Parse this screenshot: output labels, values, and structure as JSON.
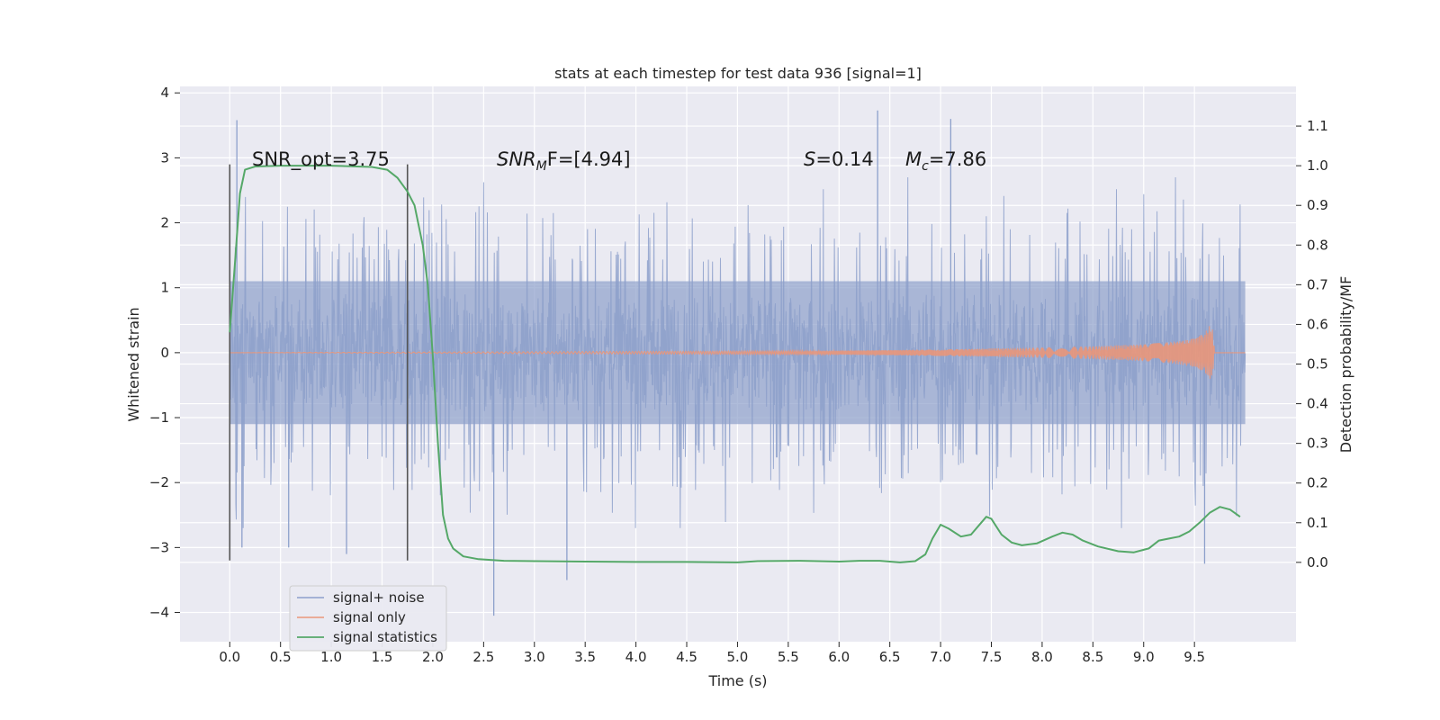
{
  "chart_data": {
    "type": "line",
    "title": "stats at each timestep for test data 936 [signal=1]",
    "xlabel": "Time (s)",
    "ylabel_left": "Whitened strain",
    "ylabel_right": "Detection probability/MF",
    "xlim": [
      -0.49,
      10.5
    ],
    "ylim_left": [
      -4.45,
      4.1
    ],
    "ylim_right": [
      -0.2,
      1.2
    ],
    "x_ticks": [
      "0.0",
      "0.5",
      "1.0",
      "1.5",
      "2.0",
      "2.5",
      "3.0",
      "3.5",
      "4.0",
      "4.5",
      "5.0",
      "5.5",
      "6.0",
      "6.5",
      "7.0",
      "7.5",
      "8.0",
      "8.5",
      "9.0",
      "9.5"
    ],
    "y_ticks_left": [
      "4",
      "3",
      "2",
      "1",
      "0",
      "−1",
      "−2",
      "−3",
      "−4"
    ],
    "y_ticks_right": [
      "1.1",
      "1.0",
      "0.9",
      "0.8",
      "0.7",
      "0.6",
      "0.5",
      "0.4",
      "0.3",
      "0.2",
      "0.1",
      "0.0"
    ],
    "grid": true,
    "legend_position": "lower-left",
    "annotations": {
      "snr_opt": "SNR_opt=3.75",
      "snr_mf_main": "SNR",
      "snr_mf_sub": "M",
      "snr_mf_tail": "F=[4.94]",
      "s_label": "S",
      "s_value": "=0.14",
      "mc_label": "M",
      "mc_sub": "c",
      "mc_value": "=7.86"
    },
    "vertical_lines": [
      {
        "x": 0.0,
        "ymin": -3.2,
        "ymax": 2.9
      },
      {
        "x": 1.75,
        "ymin": -3.2,
        "ymax": 2.9
      }
    ],
    "series": [
      {
        "name": "signal+ noise",
        "color": "#8da0cb",
        "x_range": [
          0,
          10
        ],
        "description": "dense whitened noise samples",
        "spikes": [
          {
            "x": 0.07,
            "y": 3.58
          },
          {
            "x": 0.12,
            "y": -3.0
          },
          {
            "x": 0.58,
            "y": -3.0
          },
          {
            "x": 1.15,
            "y": -3.1
          },
          {
            "x": 2.6,
            "y": -4.05
          },
          {
            "x": 3.32,
            "y": -3.5
          },
          {
            "x": 6.38,
            "y": 3.73
          },
          {
            "x": 7.1,
            "y": 3.6
          },
          {
            "x": 9.6,
            "y": -3.25
          }
        ],
        "envelope": 1.1,
        "tail": 2.7
      },
      {
        "name": "signal only",
        "color": "#e9967a",
        "x": [
          0,
          6.0,
          7.0,
          8.0,
          8.5,
          9.0,
          9.3,
          9.5,
          9.6,
          9.65,
          9.68,
          9.7,
          10.0
        ],
        "amplitude": [
          0.0,
          0.03,
          0.05,
          0.08,
          0.1,
          0.13,
          0.17,
          0.22,
          0.3,
          0.42,
          0.35,
          0.0,
          0.0
        ]
      },
      {
        "name": "signal statistics",
        "color": "#55a868",
        "x": [
          0.0,
          0.05,
          0.1,
          0.15,
          0.25,
          0.5,
          1.0,
          1.4,
          1.55,
          1.65,
          1.75,
          1.82,
          1.9,
          1.95,
          2.0,
          2.05,
          2.1,
          2.15,
          2.2,
          2.3,
          2.45,
          2.7,
          3.0,
          3.5,
          4.0,
          4.5,
          5.0,
          5.2,
          5.6,
          6.0,
          6.2,
          6.4,
          6.6,
          6.75,
          6.85,
          6.92,
          7.0,
          7.08,
          7.2,
          7.3,
          7.4,
          7.45,
          7.5,
          7.6,
          7.7,
          7.8,
          7.95,
          8.1,
          8.2,
          8.3,
          8.4,
          8.55,
          8.75,
          8.9,
          9.05,
          9.15,
          9.25,
          9.35,
          9.45,
          9.55,
          9.65,
          9.75,
          9.85,
          9.95
        ],
        "y": [
          0.58,
          0.75,
          0.93,
          0.99,
          0.998,
          1.0,
          1.0,
          0.997,
          0.99,
          0.97,
          0.935,
          0.9,
          0.8,
          0.7,
          0.52,
          0.3,
          0.12,
          0.06,
          0.035,
          0.015,
          0.008,
          0.004,
          0.003,
          0.002,
          0.001,
          0.001,
          0.0,
          0.003,
          0.004,
          0.002,
          0.004,
          0.004,
          0.0,
          0.003,
          0.02,
          0.06,
          0.095,
          0.085,
          0.065,
          0.07,
          0.1,
          0.115,
          0.11,
          0.07,
          0.05,
          0.043,
          0.048,
          0.065,
          0.075,
          0.07,
          0.055,
          0.04,
          0.028,
          0.025,
          0.035,
          0.055,
          0.06,
          0.065,
          0.078,
          0.1,
          0.125,
          0.14,
          0.133,
          0.115
        ]
      }
    ]
  }
}
